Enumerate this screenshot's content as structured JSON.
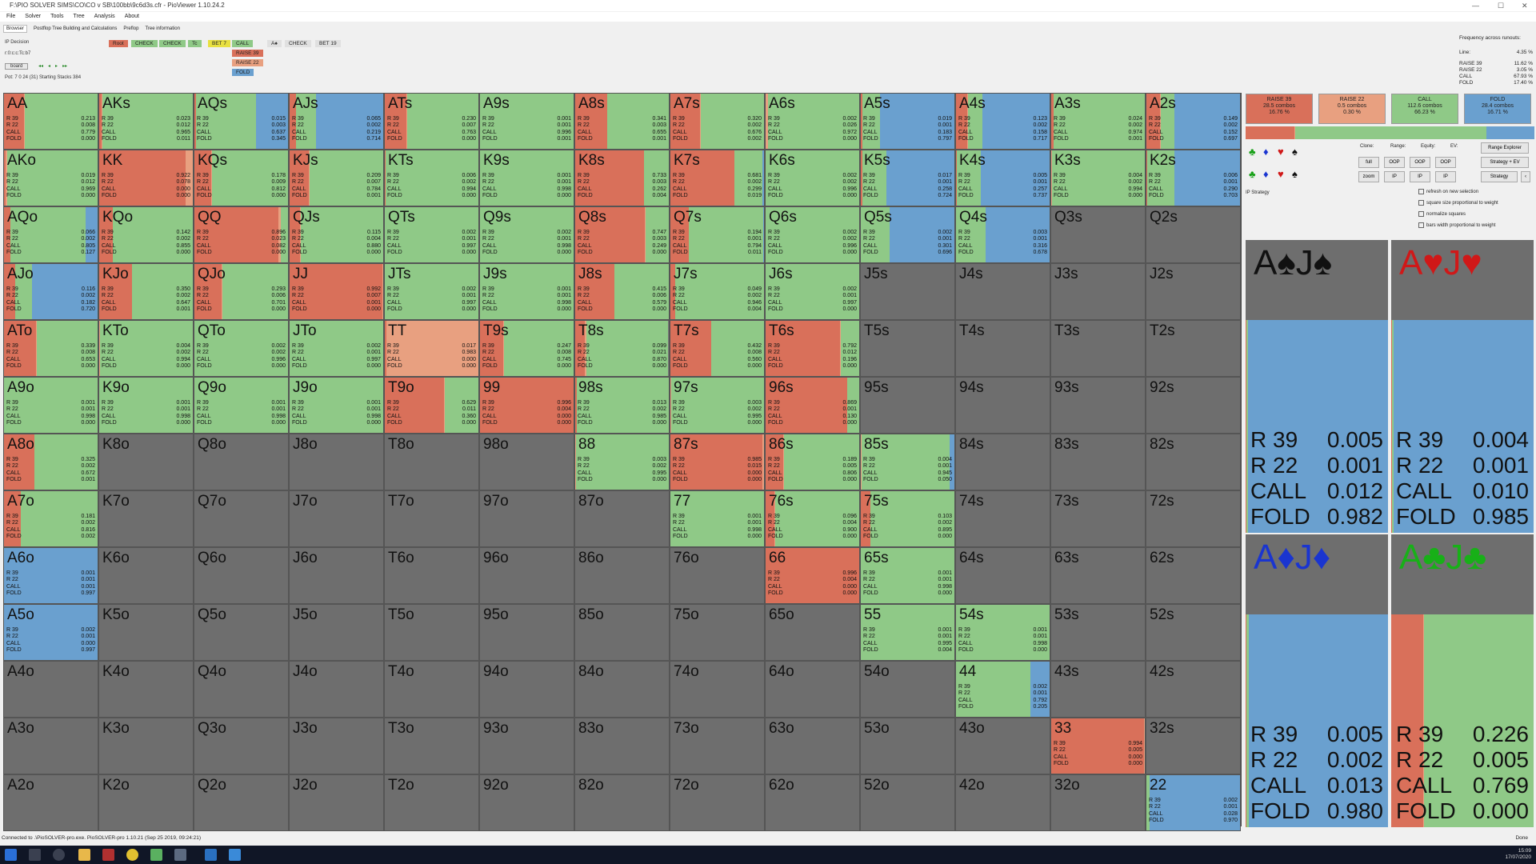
{
  "window": {
    "title": "F:\\PIO SOLVER SIMS\\CO\\CO v SB\\100bb\\9c6d3s.cfr - PioViewer 1.10.24.2"
  },
  "menu": [
    "File",
    "Solver",
    "Tools",
    "Tree",
    "Analysis",
    "About"
  ],
  "tabs": [
    "Browser",
    "Postflop Tree Building and Calculations",
    "Preflop",
    "Tree information"
  ],
  "left": {
    "decision": "IP Decision",
    "board": "r:0:c:c:Tc:b7",
    "board_btn": "board",
    "nav": [
      "◂◂",
      "◂",
      "▸",
      "▸▸"
    ],
    "pot": "Pot: 7 0 24 (31) Starting Stacks 384"
  },
  "tree": {
    "root": "Root",
    "nodes": [
      "CHECK",
      "CHECK",
      "Tc",
      "BET 7",
      "CALL",
      "A♠",
      "CHECK",
      "BET 19"
    ],
    "subnodes": [
      "RAISE 39",
      "RAISE 22",
      "FOLD"
    ]
  },
  "freq": {
    "title": "Frequency across runouts:",
    "line_label": "Line:",
    "line_value": "4.35 %",
    "rows": [
      [
        "RAISE 39",
        "11.62 %"
      ],
      [
        "RAISE 22",
        "3.05 %"
      ],
      [
        "CALL",
        "67.93 %"
      ],
      [
        "FOLD",
        "17.40 %"
      ]
    ]
  },
  "colors": {
    "raise39": "#d9705a",
    "raise22": "#e8a080",
    "call": "#8fc987",
    "fold": "#6aa0cf",
    "empty": "#6e6e6e",
    "pair": "#8a8a8a"
  },
  "grid": [
    {
      "l": "AA",
      "s": [
        0.213,
        0.008,
        0.779,
        0.0
      ]
    },
    {
      "l": "AKs",
      "s": [
        0.023,
        0.012,
        0.965,
        0.011
      ]
    },
    {
      "l": "AQs",
      "s": [
        0.015,
        0.003,
        0.637,
        0.345
      ]
    },
    {
      "l": "AJs",
      "s": [
        0.065,
        0.002,
        0.219,
        0.714
      ]
    },
    {
      "l": "ATs",
      "s": [
        0.23,
        0.007,
        0.763,
        0.0
      ]
    },
    {
      "l": "A9s",
      "s": [
        0.001,
        0.001,
        0.996,
        0.001
      ]
    },
    {
      "l": "A8s",
      "s": [
        0.341,
        0.003,
        0.655,
        0.001
      ]
    },
    {
      "l": "A7s",
      "s": [
        0.32,
        0.002,
        0.676,
        0.002
      ]
    },
    {
      "l": "A6s",
      "s": [
        0.002,
        0.026,
        0.972,
        0.0
      ]
    },
    {
      "l": "A5s",
      "s": [
        0.019,
        0.001,
        0.183,
        0.797
      ]
    },
    {
      "l": "A4s",
      "s": [
        0.123,
        0.002,
        0.158,
        0.717
      ]
    },
    {
      "l": "A3s",
      "s": [
        0.024,
        0.002,
        0.974,
        0.001
      ]
    },
    {
      "l": "A2s",
      "s": [
        0.149,
        0.002,
        0.152,
        0.697
      ]
    },
    {
      "l": "AKo",
      "s": [
        0.019,
        0.012,
        0.969,
        0.0
      ]
    },
    {
      "l": "KK",
      "s": [
        0.922,
        0.078,
        0.0,
        0.0
      ]
    },
    {
      "l": "KQs",
      "s": [
        0.178,
        0.009,
        0.812,
        0.0
      ]
    },
    {
      "l": "KJs",
      "s": [
        0.209,
        0.007,
        0.784,
        0.001
      ]
    },
    {
      "l": "KTs",
      "s": [
        0.006,
        0.002,
        0.994,
        0.0
      ]
    },
    {
      "l": "K9s",
      "s": [
        0.001,
        0.001,
        0.998,
        0.0
      ]
    },
    {
      "l": "K8s",
      "s": [
        0.733,
        0.003,
        0.262,
        0.004
      ]
    },
    {
      "l": "K7s",
      "s": [
        0.681,
        0.002,
        0.299,
        0.019
      ]
    },
    {
      "l": "K6s",
      "s": [
        0.002,
        0.002,
        0.996,
        0.0
      ]
    },
    {
      "l": "K5s",
      "s": [
        0.017,
        0.001,
        0.258,
        0.724
      ]
    },
    {
      "l": "K4s",
      "s": [
        0.005,
        0.001,
        0.257,
        0.737
      ]
    },
    {
      "l": "K3s",
      "s": [
        0.004,
        0.002,
        0.994,
        0.0
      ]
    },
    {
      "l": "K2s",
      "s": [
        0.006,
        0.001,
        0.29,
        0.703
      ]
    },
    {
      "l": "AQo",
      "s": [
        0.066,
        0.002,
        0.805,
        0.127
      ]
    },
    {
      "l": "KQo",
      "s": [
        0.142,
        0.002,
        0.855,
        0.0
      ]
    },
    {
      "l": "QQ",
      "s": [
        0.896,
        0.023,
        0.082,
        0.0
      ]
    },
    {
      "l": "QJs",
      "s": [
        0.115,
        0.004,
        0.88,
        0.0
      ]
    },
    {
      "l": "QTs",
      "s": [
        0.002,
        0.001,
        0.997,
        0.0
      ]
    },
    {
      "l": "Q9s",
      "s": [
        0.002,
        0.001,
        0.998,
        0.0
      ]
    },
    {
      "l": "Q8s",
      "s": [
        0.747,
        0.003,
        0.249,
        0.0
      ]
    },
    {
      "l": "Q7s",
      "s": [
        0.194,
        0.001,
        0.794,
        0.011
      ]
    },
    {
      "l": "Q6s",
      "s": [
        0.002,
        0.002,
        0.996,
        0.0
      ]
    },
    {
      "l": "Q5s",
      "s": [
        0.002,
        0.001,
        0.301,
        0.696
      ]
    },
    {
      "l": "Q4s",
      "s": [
        0.003,
        0.001,
        0.316,
        0.678
      ]
    },
    {
      "l": "Q3s"
    },
    {
      "l": "Q2s"
    },
    {
      "l": "AJo",
      "s": [
        0.116,
        0.002,
        0.182,
        0.72
      ]
    },
    {
      "l": "KJo",
      "s": [
        0.35,
        0.002,
        0.647,
        0.001
      ]
    },
    {
      "l": "QJo",
      "s": [
        0.293,
        0.006,
        0.701,
        0.0
      ]
    },
    {
      "l": "JJ",
      "s": [
        0.992,
        0.007,
        0.001,
        0.0
      ]
    },
    {
      "l": "JTs",
      "s": [
        0.002,
        0.001,
        0.997,
        0.0
      ]
    },
    {
      "l": "J9s",
      "s": [
        0.001,
        0.001,
        0.998,
        0.0
      ]
    },
    {
      "l": "J8s",
      "s": [
        0.415,
        0.006,
        0.579,
        0.0
      ]
    },
    {
      "l": "J7s",
      "s": [
        0.049,
        0.002,
        0.946,
        0.004
      ]
    },
    {
      "l": "J6s",
      "s": [
        0.002,
        0.001,
        0.997,
        0.0
      ]
    },
    {
      "l": "J5s"
    },
    {
      "l": "J4s"
    },
    {
      "l": "J3s"
    },
    {
      "l": "J2s"
    },
    {
      "l": "ATo",
      "s": [
        0.339,
        0.008,
        0.653,
        0.0
      ]
    },
    {
      "l": "KTo",
      "s": [
        0.004,
        0.002,
        0.994,
        0.0
      ]
    },
    {
      "l": "QTo",
      "s": [
        0.002,
        0.002,
        0.996,
        0.0
      ]
    },
    {
      "l": "JTo",
      "s": [
        0.002,
        0.001,
        0.997,
        0.0
      ]
    },
    {
      "l": "TT",
      "s": [
        0.017,
        0.983,
        0.0,
        0.0
      ]
    },
    {
      "l": "T9s",
      "s": [
        0.247,
        0.008,
        0.745,
        0.0
      ]
    },
    {
      "l": "T8s",
      "s": [
        0.099,
        0.021,
        0.87,
        0.0
      ]
    },
    {
      "l": "T7s",
      "s": [
        0.432,
        0.008,
        0.56,
        0.0
      ]
    },
    {
      "l": "T6s",
      "s": [
        0.792,
        0.012,
        0.196,
        0.0
      ]
    },
    {
      "l": "T5s"
    },
    {
      "l": "T4s"
    },
    {
      "l": "T3s"
    },
    {
      "l": "T2s"
    },
    {
      "l": "A9o",
      "s": [
        0.001,
        0.001,
        0.998,
        0.0
      ]
    },
    {
      "l": "K9o",
      "s": [
        0.001,
        0.001,
        0.998,
        0.0
      ]
    },
    {
      "l": "Q9o",
      "s": [
        0.001,
        0.001,
        0.998,
        0.0
      ]
    },
    {
      "l": "J9o",
      "s": [
        0.001,
        0.001,
        0.998,
        0.0
      ]
    },
    {
      "l": "T9o",
      "s": [
        0.629,
        0.011,
        0.36,
        0.0
      ]
    },
    {
      "l": "99",
      "s": [
        0.996,
        0.004,
        0.0,
        0.0
      ]
    },
    {
      "l": "98s",
      "s": [
        0.013,
        0.002,
        0.985,
        0.0
      ]
    },
    {
      "l": "97s",
      "s": [
        0.003,
        0.002,
        0.995,
        0.0
      ]
    },
    {
      "l": "96s",
      "s": [
        0.869,
        0.001,
        0.13,
        0.0
      ]
    },
    {
      "l": "95s"
    },
    {
      "l": "94s"
    },
    {
      "l": "93s"
    },
    {
      "l": "92s"
    },
    {
      "l": "A8o",
      "s": [
        0.325,
        0.002,
        0.672,
        0.001
      ]
    },
    {
      "l": "K8o"
    },
    {
      "l": "Q8o"
    },
    {
      "l": "J8o"
    },
    {
      "l": "T8o"
    },
    {
      "l": "98o"
    },
    {
      "l": "88",
      "s": [
        0.003,
        0.002,
        0.995,
        0.0
      ]
    },
    {
      "l": "87s",
      "s": [
        0.985,
        0.015,
        0.0,
        0.0
      ]
    },
    {
      "l": "86s",
      "s": [
        0.189,
        0.005,
        0.806,
        0.0
      ]
    },
    {
      "l": "85s",
      "s": [
        0.004,
        0.001,
        0.945,
        0.05
      ]
    },
    {
      "l": "84s"
    },
    {
      "l": "83s"
    },
    {
      "l": "82s"
    },
    {
      "l": "A7o",
      "s": [
        0.181,
        0.002,
        0.816,
        0.002
      ]
    },
    {
      "l": "K7o"
    },
    {
      "l": "Q7o"
    },
    {
      "l": "J7o"
    },
    {
      "l": "T7o"
    },
    {
      "l": "97o"
    },
    {
      "l": "87o"
    },
    {
      "l": "77",
      "s": [
        0.001,
        0.001,
        0.998,
        0.0
      ]
    },
    {
      "l": "76s",
      "s": [
        0.096,
        0.004,
        0.9,
        0.0
      ]
    },
    {
      "l": "75s",
      "s": [
        0.103,
        0.002,
        0.895,
        0.0
      ]
    },
    {
      "l": "74s"
    },
    {
      "l": "73s"
    },
    {
      "l": "72s"
    },
    {
      "l": "A6o",
      "s": [
        0.001,
        0.001,
        0.001,
        0.997
      ]
    },
    {
      "l": "K6o"
    },
    {
      "l": "Q6o"
    },
    {
      "l": "J6o"
    },
    {
      "l": "T6o"
    },
    {
      "l": "96o"
    },
    {
      "l": "86o"
    },
    {
      "l": "76o"
    },
    {
      "l": "66",
      "s": [
        0.996,
        0.004,
        0.0,
        0.0
      ]
    },
    {
      "l": "65s",
      "s": [
        0.001,
        0.001,
        0.998,
        0.0
      ]
    },
    {
      "l": "64s"
    },
    {
      "l": "63s"
    },
    {
      "l": "62s"
    },
    {
      "l": "A5o",
      "s": [
        0.002,
        0.001,
        0.0,
        0.997
      ]
    },
    {
      "l": "K5o"
    },
    {
      "l": "Q5o"
    },
    {
      "l": "J5o"
    },
    {
      "l": "T5o"
    },
    {
      "l": "95o"
    },
    {
      "l": "85o"
    },
    {
      "l": "75o"
    },
    {
      "l": "65o"
    },
    {
      "l": "55",
      "s": [
        0.001,
        0.001,
        0.995,
        0.004
      ]
    },
    {
      "l": "54s",
      "s": [
        0.001,
        0.001,
        0.998,
        0.0
      ]
    },
    {
      "l": "53s"
    },
    {
      "l": "52s"
    },
    {
      "l": "A4o"
    },
    {
      "l": "K4o"
    },
    {
      "l": "Q4o"
    },
    {
      "l": "J4o"
    },
    {
      "l": "T4o"
    },
    {
      "l": "94o"
    },
    {
      "l": "84o"
    },
    {
      "l": "74o"
    },
    {
      "l": "64o"
    },
    {
      "l": "54o"
    },
    {
      "l": "44",
      "s": [
        0.002,
        0.001,
        0.792,
        0.205
      ]
    },
    {
      "l": "43s"
    },
    {
      "l": "42s"
    },
    {
      "l": "A3o"
    },
    {
      "l": "K3o"
    },
    {
      "l": "Q3o"
    },
    {
      "l": "J3o"
    },
    {
      "l": "T3o"
    },
    {
      "l": "93o"
    },
    {
      "l": "83o"
    },
    {
      "l": "73o"
    },
    {
      "l": "63o"
    },
    {
      "l": "53o"
    },
    {
      "l": "43o"
    },
    {
      "l": "33",
      "s": [
        0.994,
        0.005,
        0.0,
        0.0
      ]
    },
    {
      "l": "32s"
    },
    {
      "l": "A2o"
    },
    {
      "l": "K2o"
    },
    {
      "l": "Q2o"
    },
    {
      "l": "J2o"
    },
    {
      "l": "T2o"
    },
    {
      "l": "92o"
    },
    {
      "l": "82o"
    },
    {
      "l": "72o"
    },
    {
      "l": "62o"
    },
    {
      "l": "52o"
    },
    {
      "l": "42o"
    },
    {
      "l": "32o"
    },
    {
      "l": "22",
      "s": [
        0.002,
        0.001,
        0.028,
        0.97
      ]
    }
  ],
  "stat_labels": [
    "R 39",
    "R 22",
    "CALL",
    "FOLD"
  ],
  "actions": [
    {
      "name": "RAISE 39",
      "combos": "28.5 combos",
      "pct": "16.76 %",
      "color": "#d9705a",
      "share": 0.1676
    },
    {
      "name": "RAISE 22",
      "combos": "0.5 combos",
      "pct": "0.30 %",
      "color": "#e8a080",
      "share": 0.003
    },
    {
      "name": "CALL",
      "combos": "112.6 combos",
      "pct": "66.23 %",
      "color": "#8fc987",
      "share": 0.6623
    },
    {
      "name": "FOLD",
      "combos": "28.4 combos",
      "pct": "16.71 %",
      "color": "#6aa0cf",
      "share": 0.1671
    }
  ],
  "suit_icons": [
    "♣",
    "♦",
    "♥",
    "♠"
  ],
  "side_controls": {
    "labels": [
      "Clone:",
      "Range:",
      "Equity:",
      "EV:"
    ],
    "range_explorer": "Range Explorer",
    "buttons": [
      "full",
      "OOP",
      "OOP",
      "OOP",
      "Strategy + EV",
      "zoom",
      "IP",
      "IP",
      "IP",
      "Strategy",
      "‹"
    ],
    "ip_strategy": "IP Strategy",
    "checks": [
      "refresh on new selection",
      "square size proportional to weight",
      "normalize squares",
      "bars width proportional to weight"
    ]
  },
  "combos": [
    {
      "title": "A♠J♠",
      "color": "#111111",
      "s": [
        0.005,
        0.001,
        0.012,
        0.982
      ]
    },
    {
      "title": "A♥J♥",
      "color": "#d01818",
      "s": [
        0.004,
        0.001,
        0.01,
        0.985
      ]
    },
    {
      "title": "A♦J♦",
      "color": "#1a35d0",
      "s": [
        0.005,
        0.002,
        0.013,
        0.98
      ]
    },
    {
      "title": "A♣J♣",
      "color": "#18b018",
      "s": [
        0.226,
        0.005,
        0.769,
        0.0
      ]
    }
  ],
  "status": "Connected to .\\PioSOLVER-pro.exe. PioSOLVER-pro 1.10.21 (Sep 25 2019, 09:24:21)",
  "status_right": "Done",
  "clock": {
    "time": "15:09",
    "date": "17/07/2020"
  }
}
